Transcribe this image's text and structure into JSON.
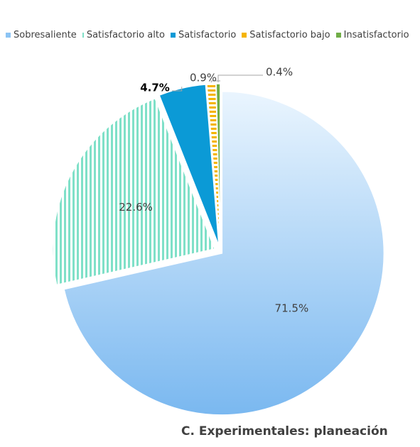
{
  "chart_data": {
    "type": "pie",
    "title": "C. Experimentales: planeación",
    "categories": [
      "Sobresaliente",
      "Satisfactorio alto",
      "Satisfactorio",
      "Satisfactorio bajo",
      "Insatisfactorio"
    ],
    "values": [
      71.5,
      22.6,
      4.7,
      0.9,
      0.4
    ],
    "value_labels": [
      "71.5%",
      "22.6%",
      "4.7%",
      "0.9%",
      "0.4%"
    ],
    "colors": [
      "#8cc4f4",
      "#7fe0c8",
      "#0b9ad6",
      "#f5b400",
      "#70ad47"
    ]
  }
}
